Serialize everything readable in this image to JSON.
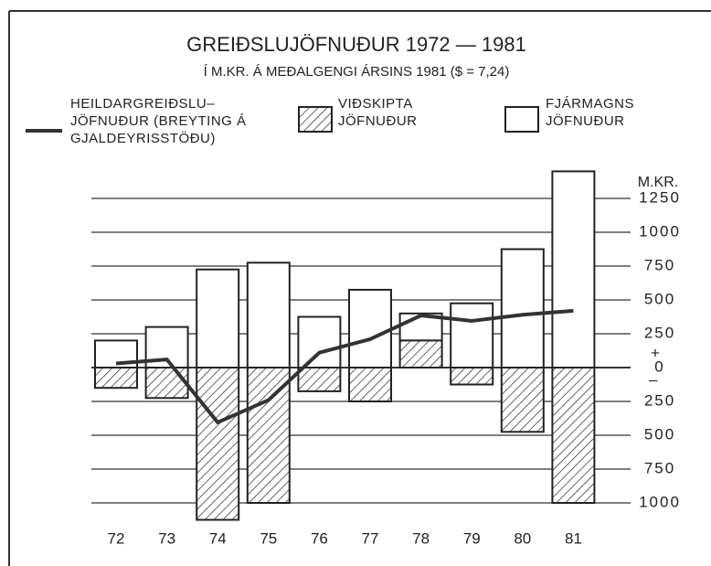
{
  "chart_data": {
    "type": "bar",
    "title": "GREIÐSLUJÖFNUÐUR 1972 — 1981",
    "subtitle": "Í M.KR. Á MEÐALGENGI ÁRSINS 1981 ($ = 7,24)",
    "y_label": "M.KR.",
    "zero_signs": [
      "+",
      "–"
    ],
    "categories": [
      "72",
      "73",
      "74",
      "75",
      "76",
      "77",
      "78",
      "79",
      "80",
      "81"
    ],
    "series": [
      {
        "name": "HEILDARGREIÐSLU–\nJÖFNUÐUR (BREYTING Á\nGJALDEYRISSTÖÐU)",
        "type": "line",
        "color": "#333333",
        "values": [
          30,
          60,
          -405,
          -240,
          110,
          210,
          385,
          345,
          390,
          420
        ]
      },
      {
        "name": "VIÐSKIPTA\nJÖFNUÐUR",
        "type": "bar",
        "pattern": "hatch",
        "color": "#333333",
        "values": [
          -150,
          -225,
          -1125,
          -1000,
          -175,
          -250,
          200,
          -125,
          -475,
          -1000
        ]
      },
      {
        "name": "FJÁRMAGNS\nJÖFNUÐUR",
        "type": "bar",
        "color": "#ffffff",
        "values": [
          200,
          300,
          725,
          775,
          375,
          575,
          200,
          475,
          875,
          1450
        ]
      }
    ],
    "ylim": [
      -1125,
      1450
    ],
    "yticks": [
      1250,
      1000,
      750,
      500,
      250,
      0,
      {
        "value": -250,
        "label": "250"
      },
      {
        "value": -500,
        "label": "500"
      },
      {
        "value": -750,
        "label": "750"
      },
      {
        "value": -1000,
        "label": "1000"
      }
    ],
    "grid": true
  }
}
